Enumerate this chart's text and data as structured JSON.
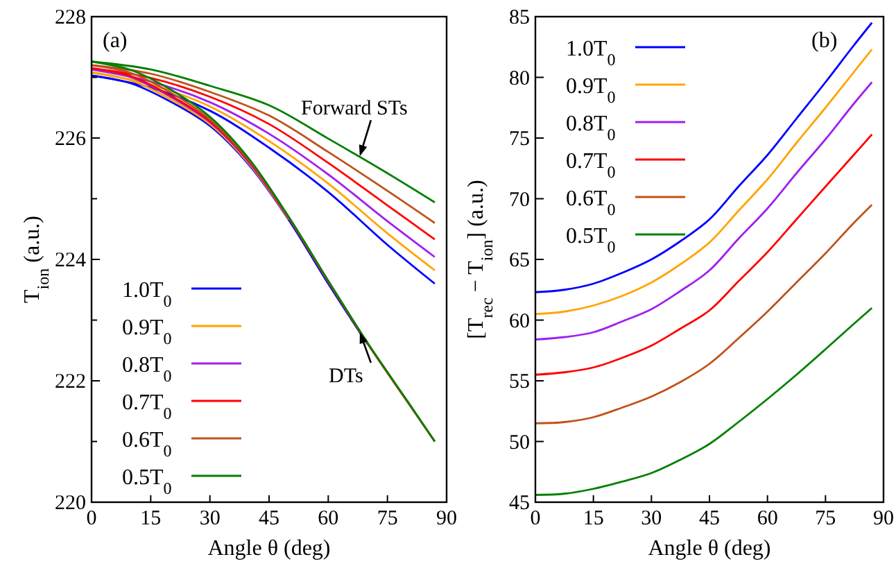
{
  "chart_data": [
    {
      "type": "line",
      "title": "(a)",
      "xlabel": "Angle θ (deg)",
      "ylabel": "T$_{ion}$ (a.u.)",
      "xlim": [
        0,
        90
      ],
      "xticks": [
        0,
        15,
        30,
        45,
        60,
        75,
        90
      ],
      "ylim": [
        220,
        228
      ],
      "yticks": [
        220,
        {
          "value": 221,
          "label": null
        },
        222,
        {
          "value": 223,
          "label": null
        },
        224,
        {
          "value": 225,
          "label": null
        },
        226,
        {
          "value": 227,
          "label": null
        },
        228
      ],
      "legend": "bottom left",
      "line_style": "solid",
      "marker": "none",
      "grid": false,
      "annotations": [
        {
          "text": "Forward STs",
          "x": 68,
          "y": 225.7
        },
        {
          "text": "DTs",
          "x": 68,
          "y": 222.8
        }
      ],
      "series": [
        {
          "name": "1.0T$_{0}$",
          "color": "#0000ff",
          "x": [
            0,
            15,
            30,
            45,
            60,
            75,
            87
          ],
          "values": [
            227.03,
            226.83,
            226.45,
            225.84,
            225.11,
            224.24,
            223.6
          ]
        },
        {
          "name": "0.9T$_{0}$",
          "color": "#ffa500",
          "x": [
            0,
            15,
            30,
            45,
            60,
            75,
            87
          ],
          "values": [
            227.08,
            226.88,
            226.52,
            225.95,
            225.25,
            224.43,
            223.82
          ]
        },
        {
          "name": "0.8T$_{0}$",
          "color": "#a020f0",
          "x": [
            0,
            15,
            30,
            45,
            60,
            75,
            87
          ],
          "values": [
            227.13,
            226.93,
            226.59,
            226.07,
            225.4,
            224.63,
            224.04
          ]
        },
        {
          "name": "0.7T$_{0}$",
          "color": "#ff0000",
          "x": [
            0,
            15,
            30,
            45,
            60,
            75,
            87
          ],
          "values": [
            227.15,
            226.99,
            226.68,
            226.23,
            225.59,
            224.89,
            224.33
          ]
        },
        {
          "name": "0.6T$_{0}$",
          "color": "#c0521a",
          "x": [
            0,
            15,
            30,
            45,
            60,
            75,
            87
          ],
          "values": [
            227.2,
            227.06,
            226.76,
            226.37,
            225.77,
            225.13,
            224.6
          ]
        },
        {
          "name": "0.5T$_{0}$",
          "color": "#008000",
          "x": [
            0,
            15,
            30,
            45,
            60,
            75,
            87
          ],
          "values": [
            227.26,
            227.13,
            226.86,
            226.54,
            225.99,
            225.42,
            224.94
          ]
        },
        {
          "color": "#0000ff",
          "x": [
            0,
            10,
            20,
            30,
            40,
            50,
            60,
            70
          ],
          "values": [
            227.03,
            226.9,
            226.6,
            226.2,
            225.55,
            224.65,
            223.6,
            222.6
          ]
        },
        {
          "color": "#ffa500",
          "x": [
            0,
            10,
            20,
            30,
            40,
            50
          ],
          "values": [
            227.08,
            226.95,
            226.64,
            226.23,
            225.57,
            224.66
          ]
        },
        {
          "color": "#a020f0",
          "x": [
            0,
            10,
            20,
            30,
            40,
            50
          ],
          "values": [
            227.13,
            227.0,
            226.68,
            226.26,
            225.59,
            224.67
          ]
        },
        {
          "color": "#ff0000",
          "x": [
            0,
            10,
            20,
            30,
            40,
            50,
            60,
            70,
            80,
            87
          ],
          "values": [
            227.15,
            227.02,
            226.7,
            226.28,
            225.61,
            224.68,
            223.63,
            222.61,
            221.66,
            221.0
          ]
        },
        {
          "color": "#c0521a",
          "x": [
            0,
            10,
            20,
            30,
            40,
            50,
            60,
            70,
            80,
            87
          ],
          "values": [
            227.2,
            227.07,
            226.75,
            226.31,
            225.63,
            224.69,
            223.64,
            222.62,
            221.67,
            221.0
          ]
        },
        {
          "color": "#008000",
          "x": [
            0,
            10,
            20,
            30,
            40,
            50,
            60,
            70,
            80,
            87
          ],
          "values": [
            227.26,
            227.12,
            226.8,
            226.35,
            225.65,
            224.7,
            223.65,
            222.62,
            221.67,
            221.0
          ]
        }
      ]
    },
    {
      "type": "line",
      "title": "(b)",
      "xlabel": "Angle θ (deg)",
      "ylabel": "[T$_{rec}$ − T$_{ion}$] (a.u.)",
      "xlim": [
        0,
        90
      ],
      "xticks": [
        0,
        15,
        30,
        45,
        60,
        75,
        90
      ],
      "ylim": [
        45,
        85
      ],
      "yticks": [
        45,
        50,
        55,
        60,
        65,
        70,
        75,
        80,
        85
      ],
      "legend": "top left",
      "line_style": "solid",
      "marker": "none",
      "grid": false,
      "x": [
        0,
        7.5,
        15,
        22.5,
        30,
        37.5,
        45,
        52.5,
        60,
        67.5,
        75,
        82,
        87
      ],
      "series": [
        {
          "name": "1.0T$_{0}$",
          "color": "#0000ff",
          "values": [
            62.3,
            62.5,
            63.0,
            63.9,
            65.0,
            66.5,
            68.3,
            71.0,
            73.6,
            76.6,
            79.6,
            82.5,
            84.5
          ]
        },
        {
          "name": "0.9T$_{0}$",
          "color": "#ffa500",
          "values": [
            60.5,
            60.7,
            61.2,
            62.0,
            63.1,
            64.6,
            66.4,
            69.0,
            71.6,
            74.6,
            77.5,
            80.3,
            82.3
          ]
        },
        {
          "name": "0.8T$_{0}$",
          "color": "#a020f0",
          "values": [
            58.4,
            58.6,
            59.0,
            59.9,
            60.9,
            62.4,
            64.1,
            66.7,
            69.2,
            72.1,
            74.9,
            77.7,
            79.6
          ]
        },
        {
          "name": "0.7T$_{0}$",
          "color": "#ff0000",
          "values": [
            55.5,
            55.7,
            56.1,
            56.9,
            57.9,
            59.3,
            60.8,
            63.2,
            65.6,
            68.3,
            71.0,
            73.5,
            75.3
          ]
        },
        {
          "name": "0.6T$_{0}$",
          "color": "#c0521a",
          "values": [
            51.5,
            51.6,
            52.0,
            52.8,
            53.7,
            54.9,
            56.4,
            58.5,
            60.7,
            63.1,
            65.5,
            67.9,
            69.5
          ]
        },
        {
          "name": "0.5T$_{0}$",
          "color": "#008000",
          "values": [
            45.6,
            45.7,
            46.1,
            46.7,
            47.4,
            48.5,
            49.8,
            51.6,
            53.5,
            55.5,
            57.6,
            59.6,
            61.0
          ]
        }
      ]
    }
  ]
}
